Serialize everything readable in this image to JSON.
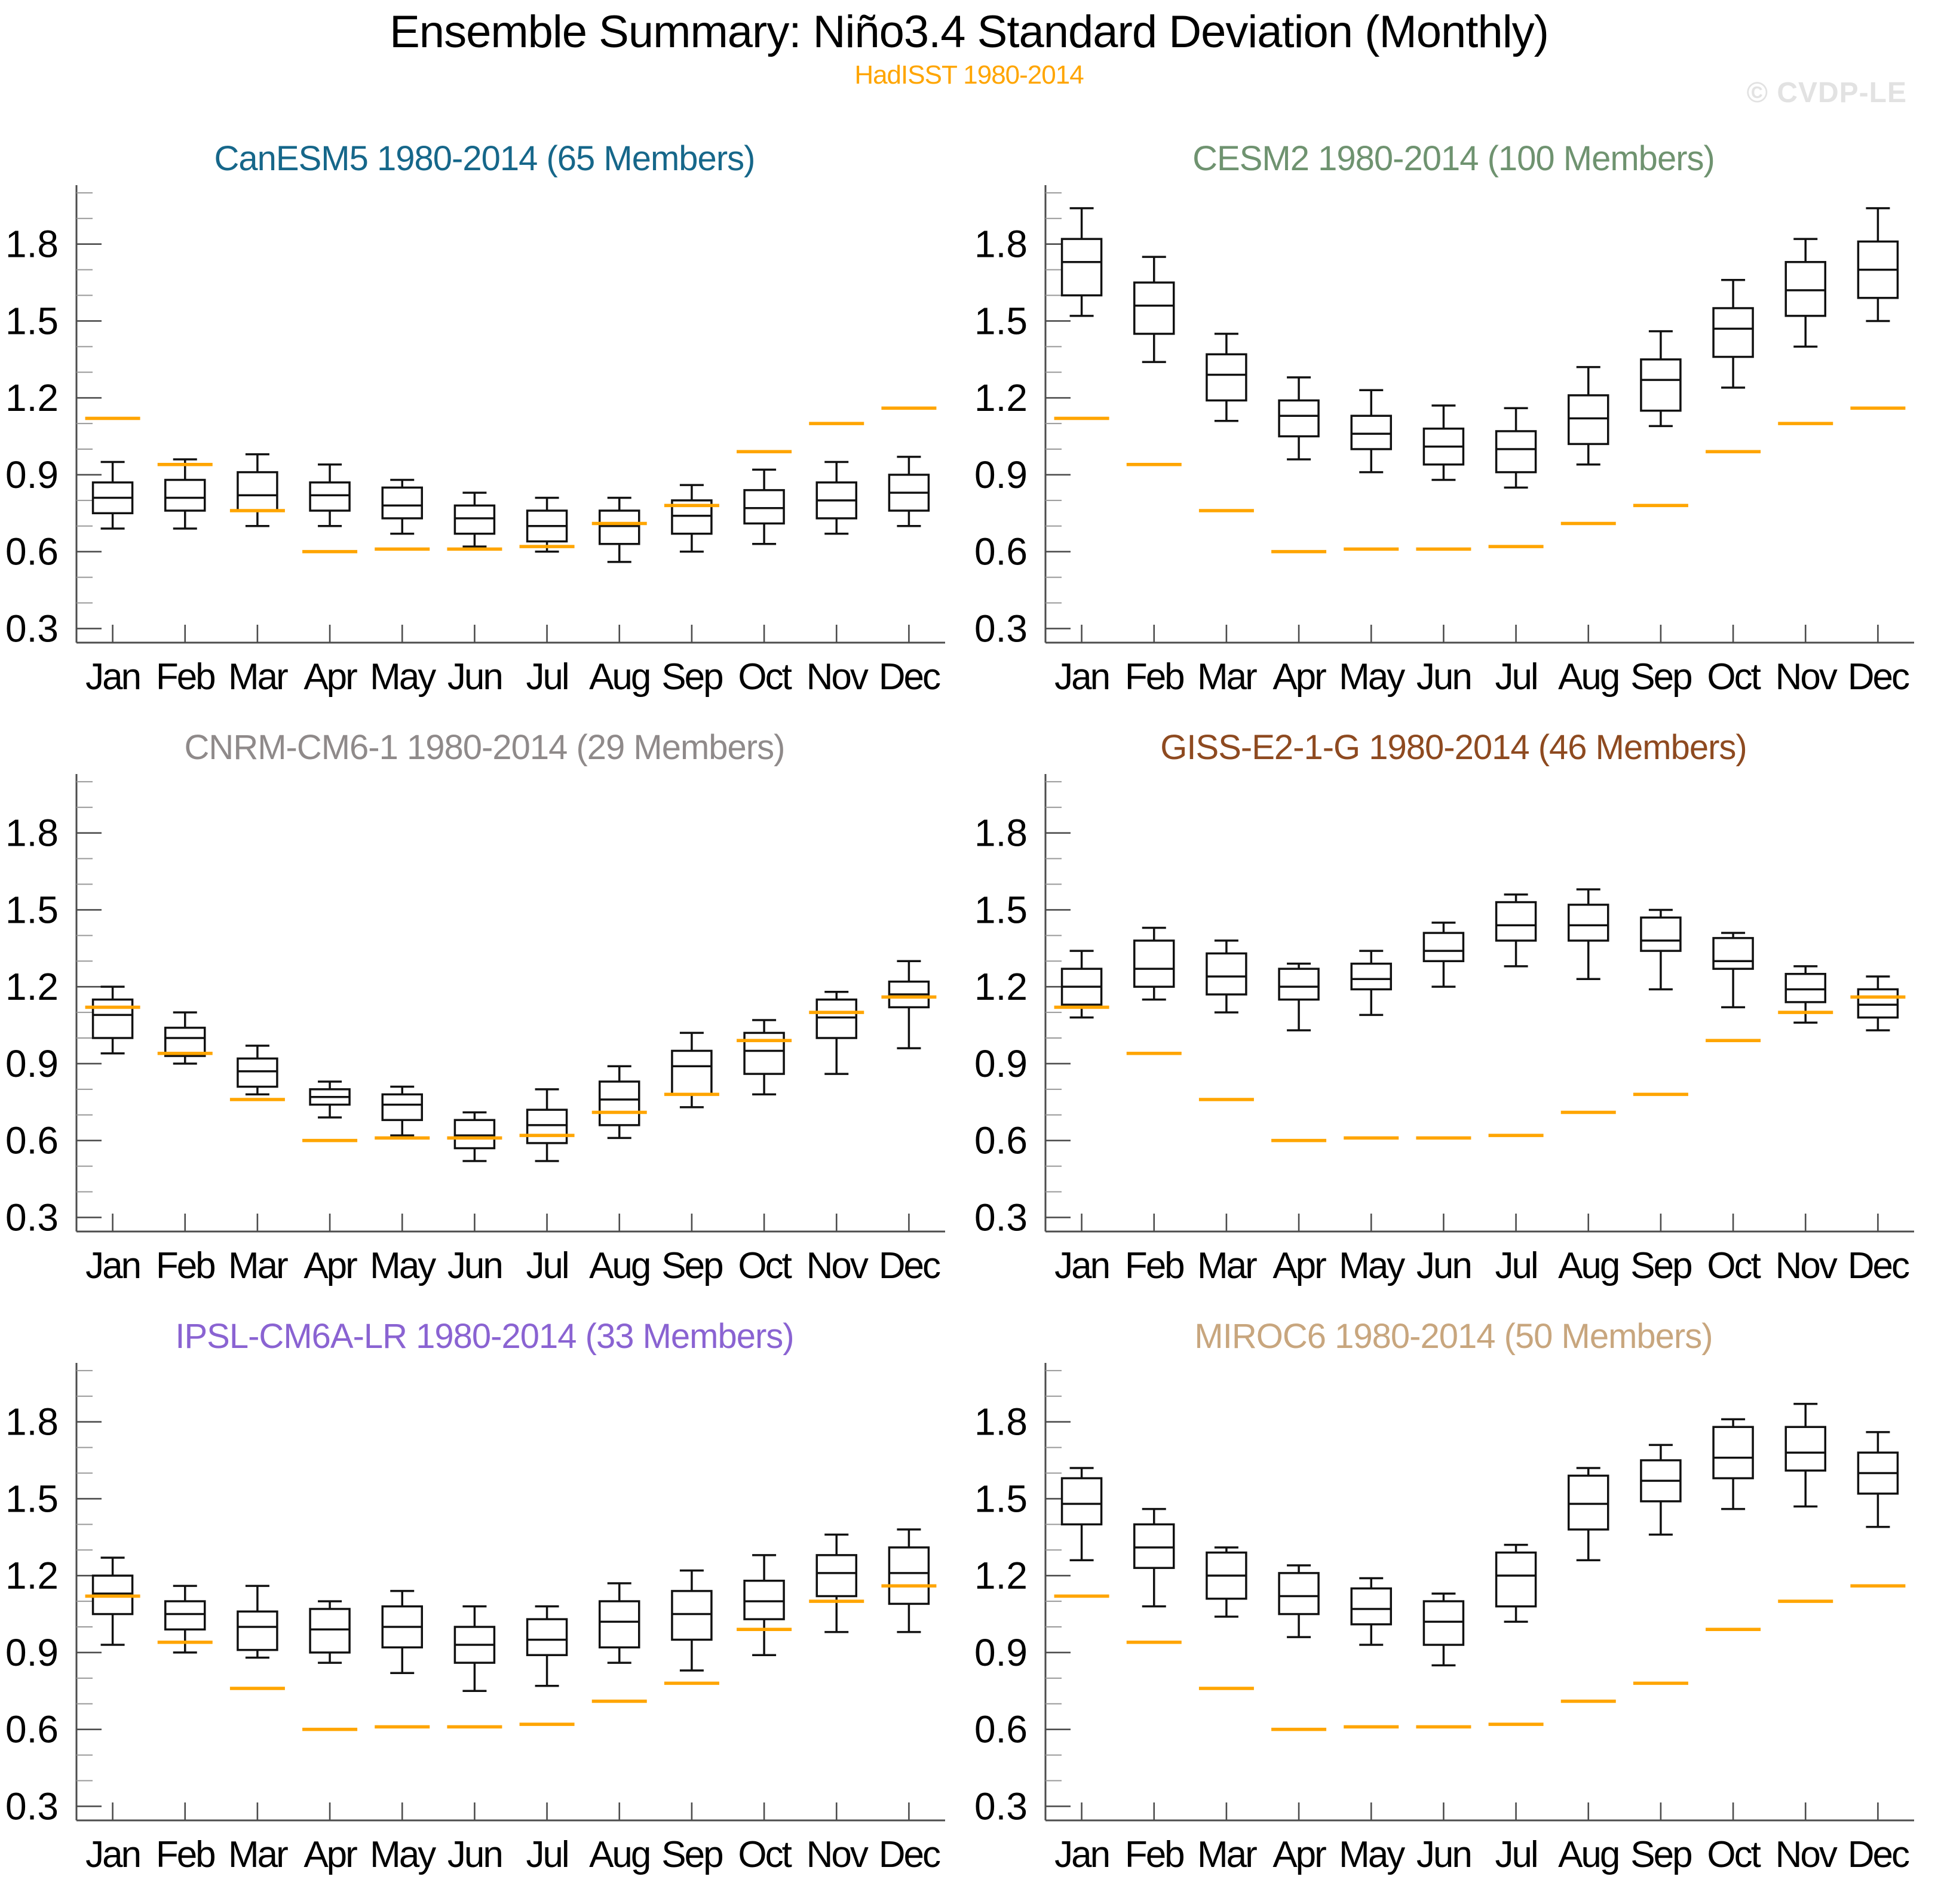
{
  "header": {
    "title": "Ensemble Summary: Niño3.4 Standard Deviation (Monthly)",
    "subtitle": "HadISST 1980-2014",
    "subtitle_color": "#FFA500",
    "watermark": "© CVDP-LE",
    "watermark_color": "#E2E2E2"
  },
  "axes": {
    "months": [
      "Jan",
      "Feb",
      "Mar",
      "Apr",
      "May",
      "Jun",
      "Jul",
      "Aug",
      "Sep",
      "Oct",
      "Nov",
      "Dec"
    ],
    "y_major_ticks": [
      0.3,
      0.6,
      0.9,
      1.2,
      1.5,
      1.8
    ],
    "y_minor_step": 0.1,
    "ylim": [
      0.245,
      2.03
    ],
    "grid": "off",
    "legend": "none",
    "axis_color": "#4D4D4D",
    "minor_tick_color": "#999999",
    "box_color": "#111111",
    "obs_color": "#FFA500"
  },
  "hadisst_obs": {
    "label": "HadISST 1980-2014",
    "color": "#FFA500",
    "values": [
      1.12,
      0.94,
      0.76,
      0.6,
      0.61,
      0.61,
      0.62,
      0.71,
      0.78,
      0.99,
      1.1,
      1.16
    ]
  },
  "chart_data": [
    {
      "type": "boxplot",
      "title": "CanESM5 1980-2014 (65 Members)",
      "title_color": "#16678A",
      "boxes": [
        {
          "m": "Jan",
          "lo": 0.69,
          "q1": 0.75,
          "med": 0.81,
          "q3": 0.87,
          "hi": 0.95
        },
        {
          "m": "Feb",
          "lo": 0.69,
          "q1": 0.76,
          "med": 0.81,
          "q3": 0.88,
          "hi": 0.96
        },
        {
          "m": "Mar",
          "lo": 0.7,
          "q1": 0.76,
          "med": 0.82,
          "q3": 0.91,
          "hi": 0.98
        },
        {
          "m": "Apr",
          "lo": 0.7,
          "q1": 0.76,
          "med": 0.82,
          "q3": 0.87,
          "hi": 0.94
        },
        {
          "m": "May",
          "lo": 0.67,
          "q1": 0.73,
          "med": 0.78,
          "q3": 0.85,
          "hi": 0.88
        },
        {
          "m": "Jun",
          "lo": 0.62,
          "q1": 0.67,
          "med": 0.73,
          "q3": 0.78,
          "hi": 0.83
        },
        {
          "m": "Jul",
          "lo": 0.6,
          "q1": 0.64,
          "med": 0.7,
          "q3": 0.76,
          "hi": 0.81
        },
        {
          "m": "Aug",
          "lo": 0.56,
          "q1": 0.63,
          "med": 0.7,
          "q3": 0.76,
          "hi": 0.81
        },
        {
          "m": "Sep",
          "lo": 0.6,
          "q1": 0.67,
          "med": 0.74,
          "q3": 0.8,
          "hi": 0.86
        },
        {
          "m": "Oct",
          "lo": 0.63,
          "q1": 0.71,
          "med": 0.77,
          "q3": 0.84,
          "hi": 0.92
        },
        {
          "m": "Nov",
          "lo": 0.67,
          "q1": 0.73,
          "med": 0.8,
          "q3": 0.87,
          "hi": 0.95
        },
        {
          "m": "Dec",
          "lo": 0.7,
          "q1": 0.76,
          "med": 0.83,
          "q3": 0.9,
          "hi": 0.97
        }
      ]
    },
    {
      "type": "boxplot",
      "title": "CESM2 1980-2014 (100 Members)",
      "title_color": "#6F9370",
      "boxes": [
        {
          "m": "Jan",
          "lo": 1.52,
          "q1": 1.6,
          "med": 1.73,
          "q3": 1.82,
          "hi": 1.94
        },
        {
          "m": "Feb",
          "lo": 1.34,
          "q1": 1.45,
          "med": 1.56,
          "q3": 1.65,
          "hi": 1.75
        },
        {
          "m": "Mar",
          "lo": 1.11,
          "q1": 1.19,
          "med": 1.29,
          "q3": 1.37,
          "hi": 1.45
        },
        {
          "m": "Apr",
          "lo": 0.96,
          "q1": 1.05,
          "med": 1.13,
          "q3": 1.19,
          "hi": 1.28
        },
        {
          "m": "May",
          "lo": 0.91,
          "q1": 1.0,
          "med": 1.06,
          "q3": 1.13,
          "hi": 1.23
        },
        {
          "m": "Jun",
          "lo": 0.88,
          "q1": 0.94,
          "med": 1.01,
          "q3": 1.08,
          "hi": 1.17
        },
        {
          "m": "Jul",
          "lo": 0.85,
          "q1": 0.91,
          "med": 1.0,
          "q3": 1.07,
          "hi": 1.16
        },
        {
          "m": "Aug",
          "lo": 0.94,
          "q1": 1.02,
          "med": 1.12,
          "q3": 1.21,
          "hi": 1.32
        },
        {
          "m": "Sep",
          "lo": 1.09,
          "q1": 1.15,
          "med": 1.27,
          "q3": 1.35,
          "hi": 1.46
        },
        {
          "m": "Oct",
          "lo": 1.24,
          "q1": 1.36,
          "med": 1.47,
          "q3": 1.55,
          "hi": 1.66
        },
        {
          "m": "Nov",
          "lo": 1.4,
          "q1": 1.52,
          "med": 1.62,
          "q3": 1.73,
          "hi": 1.82
        },
        {
          "m": "Dec",
          "lo": 1.5,
          "q1": 1.59,
          "med": 1.7,
          "q3": 1.81,
          "hi": 1.94
        }
      ]
    },
    {
      "type": "boxplot",
      "title": "CNRM-CM6-1 1980-2014 (29 Members)",
      "title_color": "#8F8A8A",
      "boxes": [
        {
          "m": "Jan",
          "lo": 0.94,
          "q1": 1.0,
          "med": 1.09,
          "q3": 1.15,
          "hi": 1.2
        },
        {
          "m": "Feb",
          "lo": 0.9,
          "q1": 0.93,
          "med": 1.0,
          "q3": 1.04,
          "hi": 1.1
        },
        {
          "m": "Mar",
          "lo": 0.78,
          "q1": 0.81,
          "med": 0.87,
          "q3": 0.92,
          "hi": 0.97
        },
        {
          "m": "Apr",
          "lo": 0.69,
          "q1": 0.74,
          "med": 0.77,
          "q3": 0.8,
          "hi": 0.83
        },
        {
          "m": "May",
          "lo": 0.62,
          "q1": 0.68,
          "med": 0.74,
          "q3": 0.78,
          "hi": 0.81
        },
        {
          "m": "Jun",
          "lo": 0.52,
          "q1": 0.57,
          "med": 0.62,
          "q3": 0.68,
          "hi": 0.71
        },
        {
          "m": "Jul",
          "lo": 0.52,
          "q1": 0.59,
          "med": 0.66,
          "q3": 0.72,
          "hi": 0.8
        },
        {
          "m": "Aug",
          "lo": 0.61,
          "q1": 0.66,
          "med": 0.76,
          "q3": 0.83,
          "hi": 0.89
        },
        {
          "m": "Sep",
          "lo": 0.73,
          "q1": 0.78,
          "med": 0.89,
          "q3": 0.95,
          "hi": 1.02
        },
        {
          "m": "Oct",
          "lo": 0.78,
          "q1": 0.86,
          "med": 0.95,
          "q3": 1.02,
          "hi": 1.07
        },
        {
          "m": "Nov",
          "lo": 0.86,
          "q1": 1.0,
          "med": 1.08,
          "q3": 1.15,
          "hi": 1.18
        },
        {
          "m": "Dec",
          "lo": 0.96,
          "q1": 1.12,
          "med": 1.17,
          "q3": 1.22,
          "hi": 1.3
        }
      ]
    },
    {
      "type": "boxplot",
      "title": "GISS-E2-1-G 1980-2014 (46 Members)",
      "title_color": "#8E4A20",
      "boxes": [
        {
          "m": "Jan",
          "lo": 1.08,
          "q1": 1.13,
          "med": 1.2,
          "q3": 1.27,
          "hi": 1.34
        },
        {
          "m": "Feb",
          "lo": 1.15,
          "q1": 1.2,
          "med": 1.27,
          "q3": 1.38,
          "hi": 1.43
        },
        {
          "m": "Mar",
          "lo": 1.1,
          "q1": 1.17,
          "med": 1.24,
          "q3": 1.33,
          "hi": 1.38
        },
        {
          "m": "Apr",
          "lo": 1.03,
          "q1": 1.15,
          "med": 1.2,
          "q3": 1.27,
          "hi": 1.29
        },
        {
          "m": "May",
          "lo": 1.09,
          "q1": 1.19,
          "med": 1.23,
          "q3": 1.29,
          "hi": 1.34
        },
        {
          "m": "Jun",
          "lo": 1.2,
          "q1": 1.3,
          "med": 1.34,
          "q3": 1.41,
          "hi": 1.45
        },
        {
          "m": "Jul",
          "lo": 1.28,
          "q1": 1.38,
          "med": 1.44,
          "q3": 1.53,
          "hi": 1.56
        },
        {
          "m": "Aug",
          "lo": 1.23,
          "q1": 1.38,
          "med": 1.44,
          "q3": 1.52,
          "hi": 1.58
        },
        {
          "m": "Sep",
          "lo": 1.19,
          "q1": 1.34,
          "med": 1.38,
          "q3": 1.47,
          "hi": 1.5
        },
        {
          "m": "Oct",
          "lo": 1.12,
          "q1": 1.27,
          "med": 1.3,
          "q3": 1.39,
          "hi": 1.41
        },
        {
          "m": "Nov",
          "lo": 1.06,
          "q1": 1.14,
          "med": 1.19,
          "q3": 1.25,
          "hi": 1.28
        },
        {
          "m": "Dec",
          "lo": 1.03,
          "q1": 1.08,
          "med": 1.13,
          "q3": 1.19,
          "hi": 1.24
        }
      ]
    },
    {
      "type": "boxplot",
      "title": "IPSL-CM6A-LR 1980-2014 (33 Members)",
      "title_color": "#8A63D2",
      "boxes": [
        {
          "m": "Jan",
          "lo": 0.93,
          "q1": 1.05,
          "med": 1.13,
          "q3": 1.2,
          "hi": 1.27
        },
        {
          "m": "Feb",
          "lo": 0.9,
          "q1": 0.99,
          "med": 1.05,
          "q3": 1.1,
          "hi": 1.16
        },
        {
          "m": "Mar",
          "lo": 0.88,
          "q1": 0.91,
          "med": 1.0,
          "q3": 1.06,
          "hi": 1.16
        },
        {
          "m": "Apr",
          "lo": 0.86,
          "q1": 0.9,
          "med": 0.99,
          "q3": 1.07,
          "hi": 1.1
        },
        {
          "m": "May",
          "lo": 0.82,
          "q1": 0.92,
          "med": 1.0,
          "q3": 1.08,
          "hi": 1.14
        },
        {
          "m": "Jun",
          "lo": 0.75,
          "q1": 0.86,
          "med": 0.93,
          "q3": 1.0,
          "hi": 1.08
        },
        {
          "m": "Jul",
          "lo": 0.77,
          "q1": 0.89,
          "med": 0.95,
          "q3": 1.03,
          "hi": 1.08
        },
        {
          "m": "Aug",
          "lo": 0.86,
          "q1": 0.92,
          "med": 1.02,
          "q3": 1.1,
          "hi": 1.17
        },
        {
          "m": "Sep",
          "lo": 0.83,
          "q1": 0.95,
          "med": 1.05,
          "q3": 1.14,
          "hi": 1.22
        },
        {
          "m": "Oct",
          "lo": 0.89,
          "q1": 1.03,
          "med": 1.1,
          "q3": 1.18,
          "hi": 1.28
        },
        {
          "m": "Nov",
          "lo": 0.98,
          "q1": 1.12,
          "med": 1.21,
          "q3": 1.28,
          "hi": 1.36
        },
        {
          "m": "Dec",
          "lo": 0.98,
          "q1": 1.09,
          "med": 1.21,
          "q3": 1.31,
          "hi": 1.38
        }
      ]
    },
    {
      "type": "boxplot",
      "title": "MIROC6 1980-2014 (50 Members)",
      "title_color": "#C8A67E",
      "boxes": [
        {
          "m": "Jan",
          "lo": 1.26,
          "q1": 1.4,
          "med": 1.48,
          "q3": 1.58,
          "hi": 1.62
        },
        {
          "m": "Feb",
          "lo": 1.08,
          "q1": 1.23,
          "med": 1.31,
          "q3": 1.4,
          "hi": 1.46
        },
        {
          "m": "Mar",
          "lo": 1.04,
          "q1": 1.11,
          "med": 1.2,
          "q3": 1.29,
          "hi": 1.31
        },
        {
          "m": "Apr",
          "lo": 0.96,
          "q1": 1.05,
          "med": 1.12,
          "q3": 1.21,
          "hi": 1.24
        },
        {
          "m": "May",
          "lo": 0.93,
          "q1": 1.01,
          "med": 1.07,
          "q3": 1.15,
          "hi": 1.19
        },
        {
          "m": "Jun",
          "lo": 0.85,
          "q1": 0.93,
          "med": 1.02,
          "q3": 1.1,
          "hi": 1.13
        },
        {
          "m": "Jul",
          "lo": 1.02,
          "q1": 1.08,
          "med": 1.2,
          "q3": 1.29,
          "hi": 1.32
        },
        {
          "m": "Aug",
          "lo": 1.26,
          "q1": 1.38,
          "med": 1.48,
          "q3": 1.59,
          "hi": 1.62
        },
        {
          "m": "Sep",
          "lo": 1.36,
          "q1": 1.49,
          "med": 1.57,
          "q3": 1.65,
          "hi": 1.71
        },
        {
          "m": "Oct",
          "lo": 1.46,
          "q1": 1.58,
          "med": 1.66,
          "q3": 1.78,
          "hi": 1.81
        },
        {
          "m": "Nov",
          "lo": 1.47,
          "q1": 1.61,
          "med": 1.68,
          "q3": 1.78,
          "hi": 1.87
        },
        {
          "m": "Dec",
          "lo": 1.39,
          "q1": 1.52,
          "med": 1.6,
          "q3": 1.68,
          "hi": 1.76
        }
      ]
    }
  ]
}
